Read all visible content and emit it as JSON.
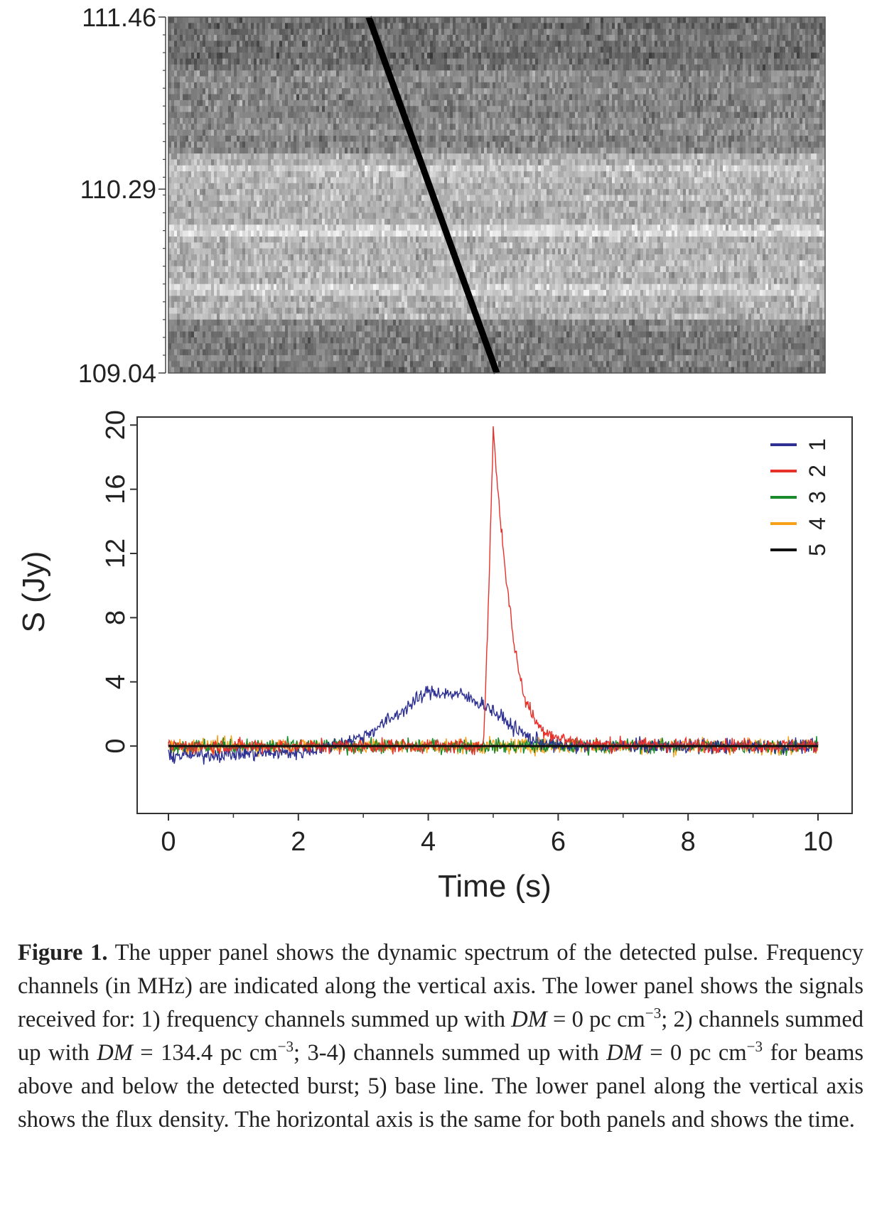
{
  "chart_data": [
    {
      "type": "heatmap",
      "description_role": "upper panel",
      "y_tick_labels": [
        "111.46",
        "110.29",
        "109.04"
      ],
      "y_ticks": [
        111.46,
        110.29,
        109.04
      ],
      "x_range": [
        0,
        10
      ],
      "y_range": [
        109.04,
        111.46
      ],
      "colormap": "grayscale",
      "dispersed_track": {
        "time_at_top_freq": 3.05,
        "time_at_bottom_freq": 5.0
      }
    },
    {
      "type": "line",
      "description_role": "lower panel",
      "title": "",
      "xlabel": "Time (s)",
      "ylabel": "S (Jy)",
      "xlim": [
        0,
        10
      ],
      "ylim": [
        -4.2,
        20.5
      ],
      "x_ticks": [
        0,
        2,
        4,
        6,
        8,
        10
      ],
      "y_ticks": [
        0,
        4,
        8,
        12,
        16,
        20
      ],
      "legend_position": "top-right",
      "series": [
        {
          "name": "1",
          "color": "#2e3192",
          "x": [
            0,
            1,
            2,
            2.5,
            3,
            3.5,
            4,
            4.5,
            4.9,
            5.3,
            5.6,
            6,
            8,
            10
          ],
          "y": [
            -0.6,
            -0.5,
            -0.4,
            0.0,
            0.6,
            1.9,
            3.4,
            3.2,
            2.5,
            1.2,
            0.4,
            0.0,
            0.0,
            0.0
          ]
        },
        {
          "name": "2",
          "color": "#e8312a",
          "x": [
            0,
            4.85,
            4.92,
            5.0,
            5.1,
            5.2,
            5.3,
            5.4,
            5.5,
            5.7,
            6.0,
            6.5,
            10
          ],
          "y": [
            0.0,
            0.0,
            8.0,
            19.7,
            14.5,
            10.5,
            7.0,
            4.5,
            2.8,
            1.2,
            0.5,
            0.1,
            0.0
          ]
        },
        {
          "name": "3",
          "color": "#1a8a2a",
          "x": [
            0,
            10
          ],
          "y": [
            0,
            0
          ]
        },
        {
          "name": "4",
          "color": "#f7a11a",
          "x": [
            0,
            10
          ],
          "y": [
            0,
            0
          ]
        },
        {
          "name": "5",
          "color": "#111111",
          "x": [
            0,
            10
          ],
          "y": [
            0,
            0
          ]
        }
      ]
    }
  ],
  "caption": {
    "bold": "Figure 1.",
    "p1": " The upper panel shows the dynamic spectrum of the detected pulse. Frequency channels (in MHz) are indicated along the vertical axis. The lower panel shows the signals received for: 1) frequency channels summed up with ",
    "dm1": "DM",
    "p2": " = 0 pc cm",
    "exp1": "−3",
    "p3": "; 2) channels summed up with ",
    "dm2": "DM",
    "p4": " = 134.4 pc cm",
    "exp2": "−3",
    "p5": "; 3-4) channels summed up with ",
    "dm3": "DM",
    "p6": " = 0 pc cm",
    "exp3": "−3",
    "p7": " for beams above and below the detected burst; 5) base line. The lower panel along the vertical axis shows the flux density. The horizontal axis is the same for both panels and shows the time."
  }
}
